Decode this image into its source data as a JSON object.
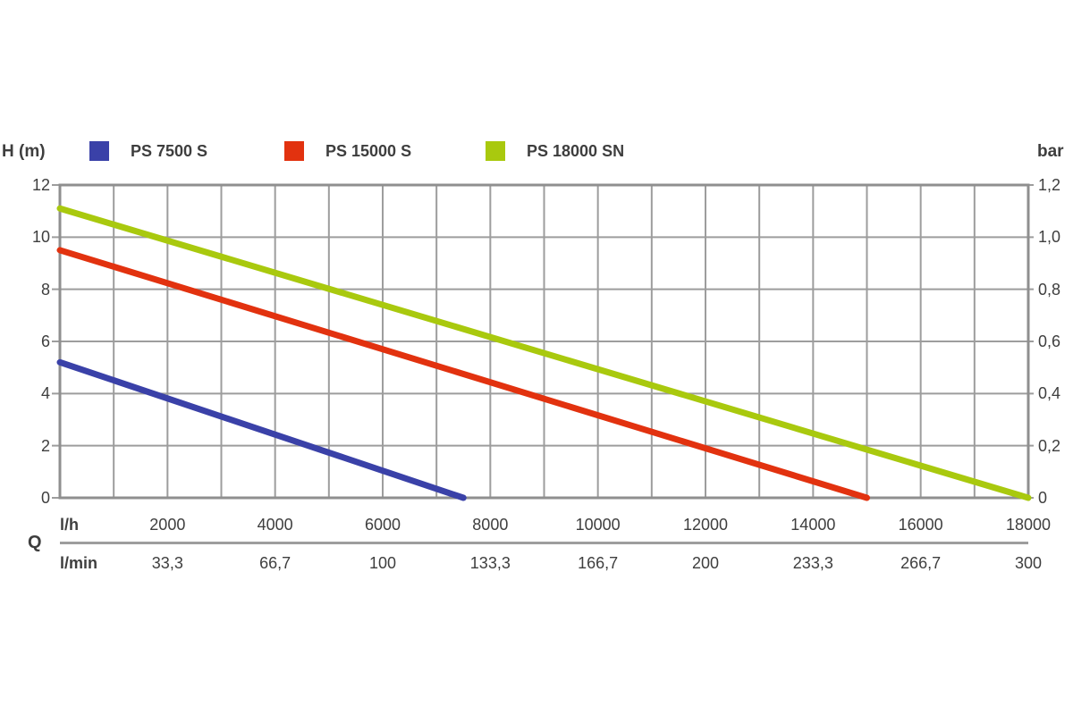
{
  "colors": {
    "background": "#ffffff",
    "grid": "#9d9d9d",
    "plot_border": "#8f8f8f",
    "separator": "#9d9d9d",
    "text": "#3e3e3e"
  },
  "chart_data": {
    "type": "line",
    "legend_position": "top",
    "grid": true,
    "x_axis": {
      "quantity_label": "Q",
      "unit_primary": "l/h",
      "unit_secondary": "l/min",
      "range_lh": [
        0,
        18000
      ],
      "gridline_step_lh": 1000,
      "tick_step_lh": 2000,
      "ticks_lh": [
        "2000",
        "4000",
        "6000",
        "8000",
        "10000",
        "12000",
        "14000",
        "16000",
        "18000"
      ],
      "ticks_lmin": [
        "33,3",
        "66,7",
        "100",
        "133,3",
        "166,7",
        "200",
        "233,3",
        "266,7",
        "300"
      ]
    },
    "y_axis_left": {
      "unit": "H (m)",
      "range": [
        0,
        12
      ],
      "gridline_step": 2,
      "ticks_top_to_bottom": [
        "12",
        "10",
        "8",
        "6",
        "4",
        "2",
        "0"
      ]
    },
    "y_axis_right": {
      "unit": "bar",
      "range": [
        0,
        1.2
      ],
      "gridline_step": 0.2,
      "ticks_top_to_bottom": [
        "1,2",
        "1,0",
        "0,8",
        "0,6",
        "0,4",
        "0,2",
        "0"
      ]
    },
    "series": [
      {
        "name": "PS 7500 S",
        "color": "#3a41a8",
        "points_lh_h": [
          [
            0,
            5.2
          ],
          [
            7500,
            0
          ]
        ]
      },
      {
        "name": "PS 15000 S",
        "color": "#e2320f",
        "points_lh_h": [
          [
            0,
            9.5
          ],
          [
            15000,
            0
          ]
        ]
      },
      {
        "name": "PS 18000 SN",
        "color": "#a9c90e",
        "points_lh_h": [
          [
            0,
            11.1
          ],
          [
            18000,
            0
          ]
        ]
      }
    ]
  }
}
